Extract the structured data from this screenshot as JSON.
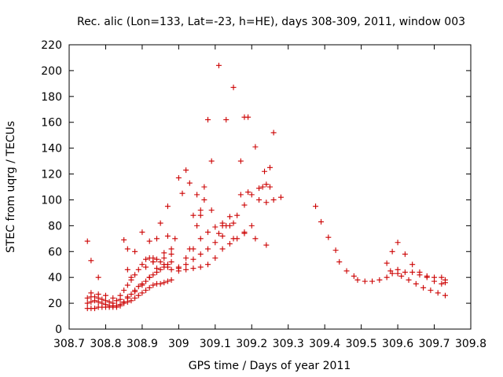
{
  "chart_data": {
    "type": "scatter",
    "title": "Rec. alic (Lon=133, Lat=-23, h=HE), days 308-309, 2011, window 003",
    "xlabel": "GPS time / Days of year 2011",
    "ylabel": "STEC from uqrg / TECUs",
    "xlim": [
      308.7,
      309.8
    ],
    "ylim": [
      0,
      220
    ],
    "xticks": [
      "308.7",
      "308.8",
      "308.9",
      "309",
      "309.1",
      "309.2",
      "309.3",
      "309.4",
      "309.5",
      "309.6",
      "309.7",
      "309.8"
    ],
    "yticks": [
      "0",
      "20",
      "40",
      "60",
      "80",
      "100",
      "120",
      "140",
      "160",
      "180",
      "200",
      "220"
    ],
    "grid": false,
    "legend": "none",
    "marker": "+",
    "color": "#cc0000",
    "series": [
      {
        "name": "",
        "x": [
          308.75,
          308.76,
          308.77,
          308.78,
          308.79,
          308.8,
          308.81,
          308.82,
          308.83,
          308.84,
          308.85,
          308.86,
          308.87,
          308.88,
          308.89,
          308.9,
          308.91,
          308.92,
          308.93,
          308.94,
          308.95,
          308.96,
          308.97,
          308.98,
          309.0,
          309.02,
          309.04,
          309.06,
          309.08,
          309.1,
          309.12,
          309.14,
          309.16,
          309.18,
          309.2,
          308.75,
          308.76,
          308.77,
          308.78,
          308.79,
          308.8,
          308.81,
          308.82,
          308.83,
          308.84,
          308.85,
          308.86,
          308.87,
          308.88,
          308.89,
          308.9,
          308.91,
          308.92,
          308.93,
          308.94,
          308.95,
          308.96,
          308.97,
          308.98,
          309.0,
          309.02,
          309.04,
          309.06,
          309.08,
          309.1,
          309.12,
          309.14,
          309.16,
          309.18,
          309.2,
          309.22,
          309.24,
          309.26,
          309.28,
          308.75,
          308.76,
          308.77,
          308.78,
          308.79,
          308.8,
          308.81,
          308.82,
          308.83,
          308.84,
          308.85,
          308.86,
          308.87,
          308.88,
          308.89,
          308.9,
          308.91,
          308.92,
          308.93,
          308.94,
          308.95,
          308.96,
          308.97,
          308.98,
          308.76,
          308.78,
          308.8,
          308.82,
          308.84,
          308.86,
          308.88,
          308.9,
          308.92,
          308.94,
          308.96,
          308.98,
          309.0,
          309.02,
          309.04,
          309.06,
          309.08,
          309.1,
          309.12,
          309.15,
          309.18,
          309.21,
          309.24,
          309.375,
          309.39,
          309.41,
          309.43,
          309.44,
          309.46,
          309.48,
          309.49,
          309.51,
          309.53,
          309.55,
          309.57,
          309.585,
          309.6,
          309.62,
          309.64,
          309.66,
          309.68,
          309.7,
          309.72,
          309.73,
          309.57,
          309.585,
          309.6,
          309.62,
          309.64,
          309.66,
          309.68,
          309.7,
          309.72,
          309.73,
          309.58,
          309.6,
          309.61,
          309.63,
          309.65,
          309.67,
          309.69,
          309.71,
          309.73,
          308.75,
          308.76,
          308.78,
          308.85,
          308.86,
          308.88,
          308.93,
          308.96,
          308.99,
          309.03,
          309.05,
          309.07,
          309.09,
          309.11,
          309.13,
          309.15,
          309.17,
          309.19,
          309.23,
          309.25,
          308.86,
          308.9,
          308.94,
          308.97,
          309.01,
          309.04,
          309.06,
          309.08,
          308.92,
          308.95,
          308.97,
          309.0,
          309.02,
          309.05,
          309.07,
          309.09,
          309.12,
          309.14,
          309.17,
          309.19,
          309.22,
          309.24,
          309.26,
          308.87,
          308.91,
          308.93,
          308.98,
          309.03,
          309.06,
          309.11,
          309.13,
          309.15,
          309.18,
          309.21,
          309.235,
          309.25
        ],
        "y": [
          16,
          16,
          16,
          17,
          17,
          17,
          17,
          18,
          18,
          19,
          20,
          21,
          22,
          24,
          26,
          28,
          30,
          32,
          34,
          35,
          35,
          36,
          37,
          38,
          45,
          46,
          47,
          48,
          50,
          55,
          62,
          66,
          70,
          74,
          80,
          20,
          21,
          22,
          21,
          20,
          19,
          18,
          17,
          17,
          18,
          21,
          24,
          27,
          30,
          33,
          35,
          37,
          40,
          42,
          44,
          46,
          48,
          50,
          52,
          47,
          50,
          54,
          58,
          62,
          67,
          72,
          80,
          88,
          96,
          104,
          109,
          112,
          100,
          102,
          24,
          25,
          25,
          24,
          23,
          22,
          21,
          20,
          22,
          26,
          30,
          34,
          38,
          42,
          46,
          50,
          54,
          55,
          55,
          54,
          52,
          50,
          48,
          46,
          28,
          27,
          26,
          24,
          23,
          25,
          29,
          34,
          40,
          47,
          55,
          62,
          48,
          55,
          62,
          70,
          75,
          79,
          80,
          82,
          75,
          70,
          65,
          95,
          83,
          71,
          61,
          52,
          45,
          41,
          38,
          37,
          37,
          38,
          40,
          43,
          46,
          44,
          44,
          42,
          41,
          40,
          40,
          38,
          51,
          60,
          67,
          58,
          50,
          44,
          40,
          37,
          35,
          36,
          45,
          43,
          41,
          38,
          35,
          32,
          30,
          28,
          26,
          68,
          53,
          40,
          69,
          46,
          60,
          52,
          59,
          70,
          113,
          80,
          100,
          130,
          204,
          162,
          187,
          130,
          164,
          110,
          125,
          62,
          75,
          70,
          95,
          105,
          88,
          92,
          162,
          68,
          82,
          72,
          117,
          123,
          104,
          110,
          92,
          82,
          87,
          104,
          106,
          100,
          98,
          152,
          40,
          48,
          52,
          58,
          62,
          88,
          74,
          80,
          70,
          164,
          141,
          122,
          110
        ]
      }
    ]
  }
}
